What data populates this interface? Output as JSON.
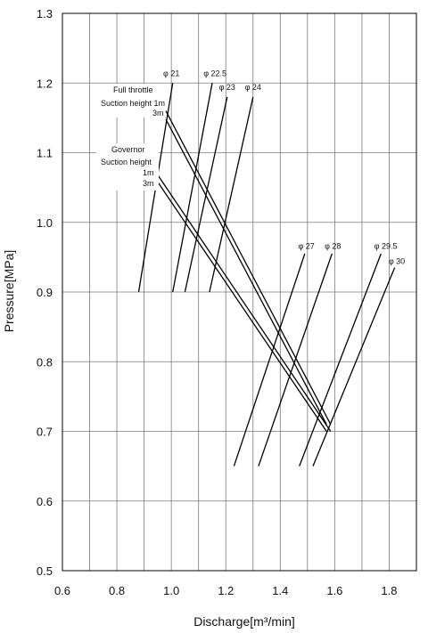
{
  "chart_data": {
    "type": "line",
    "xlabel": "Discharge[m³/min]",
    "ylabel": "Pressure[MPa]",
    "xlim": [
      0.6,
      1.9
    ],
    "ylim": [
      0.5,
      1.3
    ],
    "x_ticks": [
      "0.6",
      "0.8",
      "1.0",
      "1.2",
      "1.4",
      "1.6",
      "1.8"
    ],
    "y_ticks": [
      "0.5",
      "0.6",
      "0.7",
      "0.8",
      "0.9",
      "1.0",
      "1.1",
      "1.2",
      "1.3"
    ],
    "x_grid_step": 0.1,
    "y_grid_step": 0.1,
    "grid": true,
    "series": [
      {
        "name": "φ 21",
        "x": [
          0.88,
          1.005
        ],
        "y": [
          0.9,
          1.2
        ]
      },
      {
        "name": "φ 22.5",
        "x": [
          1.005,
          1.15
        ],
        "y": [
          0.9,
          1.2
        ]
      },
      {
        "name": "φ 23",
        "x": [
          1.05,
          1.205
        ],
        "y": [
          0.9,
          1.18
        ]
      },
      {
        "name": "φ 24",
        "x": [
          1.14,
          1.3
        ],
        "y": [
          0.9,
          1.18
        ]
      },
      {
        "name": "φ 27",
        "x": [
          1.23,
          1.49
        ],
        "y": [
          0.65,
          0.955
        ]
      },
      {
        "name": "φ 28",
        "x": [
          1.32,
          1.59
        ],
        "y": [
          0.65,
          0.955
        ]
      },
      {
        "name": "φ 29.5",
        "x": [
          1.47,
          1.77
        ],
        "y": [
          0.65,
          0.955
        ]
      },
      {
        "name": "φ 30",
        "x": [
          1.52,
          1.82
        ],
        "y": [
          0.65,
          0.935
        ]
      },
      {
        "name": "",
        "x": [
          0.98,
          1.585
        ],
        "y": [
          1.16,
          0.71
        ]
      },
      {
        "name": "",
        "x": [
          0.98,
          1.57
        ],
        "y": [
          1.148,
          0.71
        ]
      },
      {
        "name": "",
        "x": [
          0.95,
          1.585
        ],
        "y": [
          1.068,
          0.7
        ]
      },
      {
        "name": "",
        "x": [
          0.95,
          1.57
        ],
        "y": [
          1.058,
          0.7
        ]
      }
    ],
    "annotations": [
      {
        "text": "φ 21",
        "x": 0.97,
        "y": 1.21
      },
      {
        "text": "φ 22.5",
        "x": 1.118,
        "y": 1.21
      },
      {
        "text": "φ 23",
        "x": 1.175,
        "y": 1.19
      },
      {
        "text": "φ 24",
        "x": 1.27,
        "y": 1.19
      },
      {
        "text": "φ 27",
        "x": 1.466,
        "y": 0.962
      },
      {
        "text": "φ 28",
        "x": 1.563,
        "y": 0.962
      },
      {
        "text": "φ 29.5",
        "x": 1.745,
        "y": 0.962
      },
      {
        "text": "φ 30",
        "x": 1.798,
        "y": 0.94
      }
    ],
    "labels": {
      "full_throttle": "Full throttle",
      "fs_height": "Suction height 1m",
      "fs_3m": "3m",
      "governor": "Governor",
      "g_height": "Suction height",
      "g_1m": "1m",
      "g_3m": "3m"
    }
  }
}
